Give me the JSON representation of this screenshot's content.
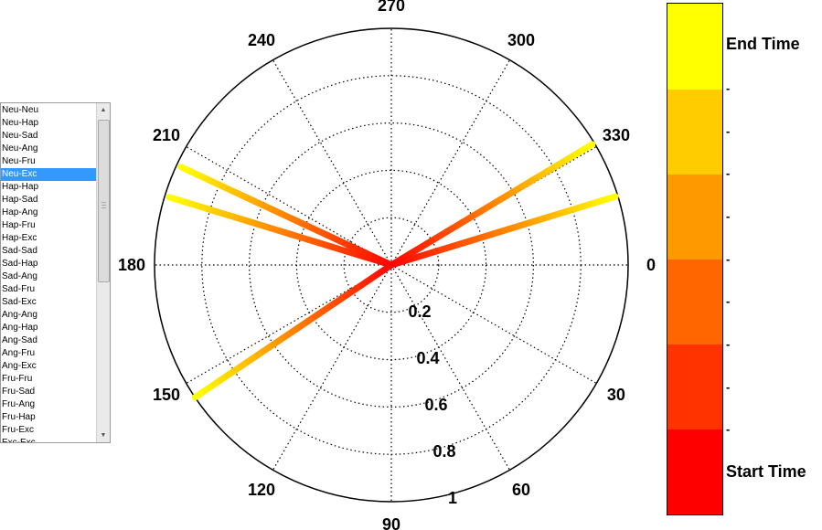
{
  "listbox": {
    "items": [
      "Neu-Neu",
      "Neu-Hap",
      "Neu-Sad",
      "Neu-Ang",
      "Neu-Fru",
      "Neu-Exc",
      "Hap-Hap",
      "Hap-Sad",
      "Hap-Ang",
      "Hap-Fru",
      "Hap-Exc",
      "Sad-Sad",
      "Sad-Hap",
      "Sad-Ang",
      "Sad-Fru",
      "Sad-Exc",
      "Ang-Ang",
      "Ang-Hap",
      "Ang-Sad",
      "Ang-Fru",
      "Ang-Exc",
      "Fru-Fru",
      "Fru-Sad",
      "Fru-Ang",
      "Fru-Hap",
      "Fru-Exc",
      "Exc-Exc"
    ],
    "selected_index": 5
  },
  "chart_data": {
    "type": "polar-line",
    "angle_labels": [
      "0",
      "30",
      "60",
      "90",
      "120",
      "150",
      "180",
      "210",
      "240",
      "270",
      "300",
      "330"
    ],
    "radial_labels": [
      "0.2",
      "0.4",
      "0.6",
      "0.8",
      "1"
    ],
    "rlim": [
      0,
      1
    ],
    "grid": true,
    "series": [
      {
        "angle_deg": 329,
        "r": 0.99
      },
      {
        "angle_deg": 343,
        "r": 0.99
      },
      {
        "angle_deg": 197,
        "r": 0.98
      },
      {
        "angle_deg": 205,
        "r": 0.98
      },
      {
        "angle_deg": 146,
        "r": 1.0
      }
    ],
    "colorbar": {
      "colors": [
        "#ff0000",
        "#ff3300",
        "#ff6600",
        "#ff9900",
        "#ffcc00",
        "#ffff00"
      ],
      "top_label": "End Time",
      "bottom_label": "Start Time",
      "tick_text": "-"
    }
  }
}
